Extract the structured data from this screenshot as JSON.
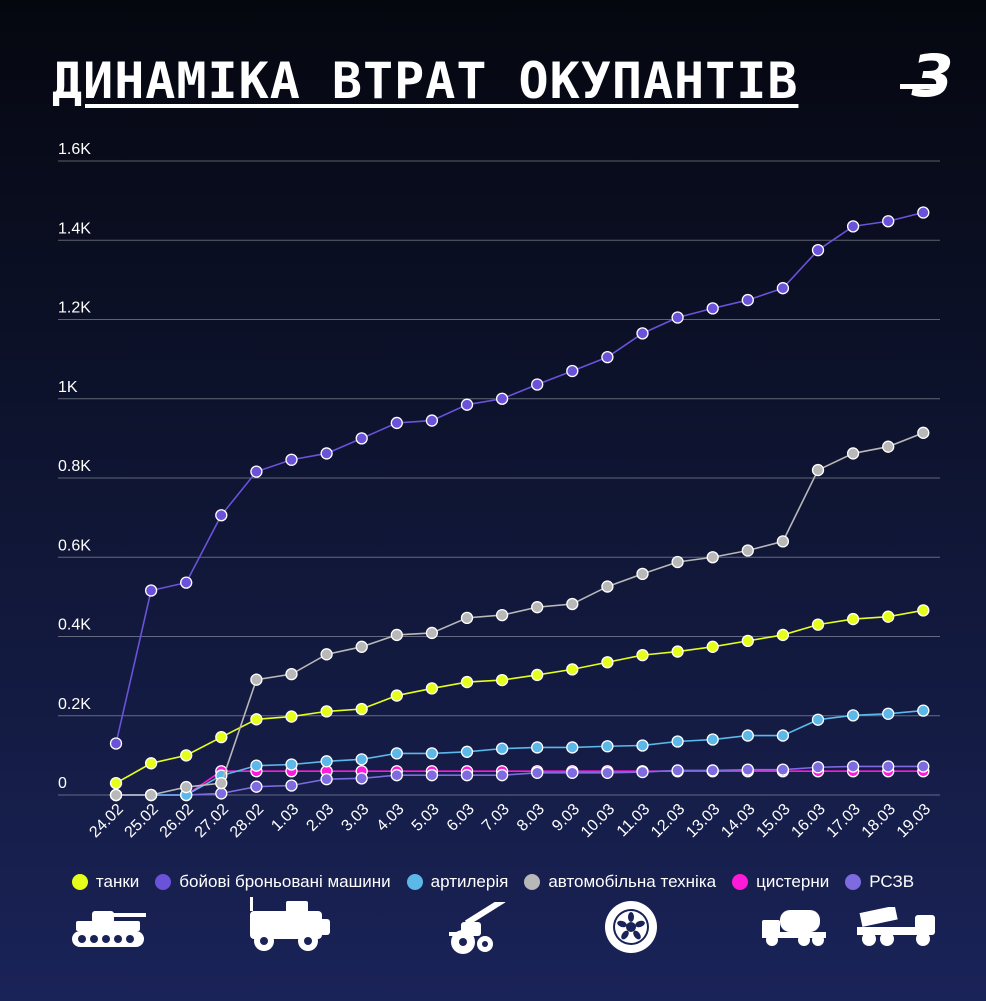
{
  "header": {
    "title": "ДИНАМІКА ВТРАТ ОКУПАНТІВ",
    "logo_text": "З"
  },
  "chart_data": {
    "type": "line",
    "categories": [
      "24.02",
      "25.02",
      "26.02",
      "27.02",
      "28.02",
      "1.03",
      "2.03",
      "3.03",
      "4.03",
      "5.03",
      "6.03",
      "7.03",
      "8.03",
      "9.03",
      "10.03",
      "11.03",
      "12.03",
      "13.03",
      "14.03",
      "15.03",
      "16.03",
      "17.03",
      "18.03",
      "19.03"
    ],
    "yticks": [
      0,
      200,
      400,
      600,
      800,
      1000,
      1200,
      1400,
      1600
    ],
    "ytick_labels": [
      "0",
      "0.2K",
      "0.4K",
      "0.6K",
      "0.8K",
      "1K",
      "1.2K",
      "1.4K",
      "1.6K"
    ],
    "ylim": [
      0,
      1600
    ],
    "grid": true,
    "legend_position": "bottom",
    "series": [
      {
        "name": "бойові броньовані машини",
        "color": "#6a52d9",
        "values": [
          130,
          516,
          536,
          706,
          816,
          846,
          862,
          900,
          939,
          945,
          985,
          1000,
          1036,
          1070,
          1105,
          1165,
          1205,
          1228,
          1249,
          1279,
          1375,
          1435,
          1448,
          1470
        ]
      },
      {
        "name": "автомобільна техніка",
        "color": "#b8b8b8",
        "values": [
          0,
          0,
          20,
          30,
          291,
          305,
          355,
          374,
          404,
          409,
          447,
          454,
          474,
          482,
          526,
          558,
          588,
          600,
          617,
          640,
          820,
          862,
          879,
          914
        ]
      },
      {
        "name": "танки",
        "color": "#e6ff1a",
        "values": [
          30,
          80,
          100,
          146,
          191,
          198,
          211,
          217,
          251,
          269,
          285,
          290,
          303,
          317,
          335,
          353,
          362,
          374,
          389,
          404,
          430,
          444,
          450,
          466
        ]
      },
      {
        "name": "артилерія",
        "color": "#5bb8e8",
        "values": [
          0,
          0,
          0,
          49,
          74,
          77,
          85,
          90,
          105,
          105,
          109,
          117,
          120,
          120,
          123,
          125,
          135,
          140,
          150,
          150,
          190,
          201,
          205,
          213
        ]
      },
      {
        "name": "цистерни",
        "color": "#ff1ad9",
        "values": [
          0,
          0,
          0,
          60,
          60,
          60,
          60,
          60,
          60,
          60,
          60,
          60,
          60,
          60,
          60,
          60,
          60,
          60,
          60,
          60,
          60,
          60,
          60,
          60
        ]
      },
      {
        "name": "РСЗВ",
        "color": "#7f6be0",
        "values": [
          0,
          0,
          0,
          4,
          21,
          24,
          40,
          42,
          50,
          50,
          50,
          50,
          56,
          56,
          56,
          58,
          62,
          62,
          64,
          64,
          70,
          72,
          72,
          72
        ]
      }
    ]
  },
  "legend": [
    {
      "label": "танки",
      "color": "#e6ff1a"
    },
    {
      "label": "бойові броньовані машини",
      "color": "#6a52d9"
    },
    {
      "label": "артилерія",
      "color": "#5bb8e8"
    },
    {
      "label": "автомобільна техніка",
      "color": "#b8b8b8"
    },
    {
      "label": "цистерни",
      "color": "#ff1ad9"
    },
    {
      "label": "РСЗВ",
      "color": "#7f6be0"
    }
  ],
  "icons": [
    "tank-icon",
    "armored-vehicle-icon",
    "artillery-icon",
    "wheel-icon",
    "tanker-truck-icon",
    "mlrs-icon"
  ]
}
